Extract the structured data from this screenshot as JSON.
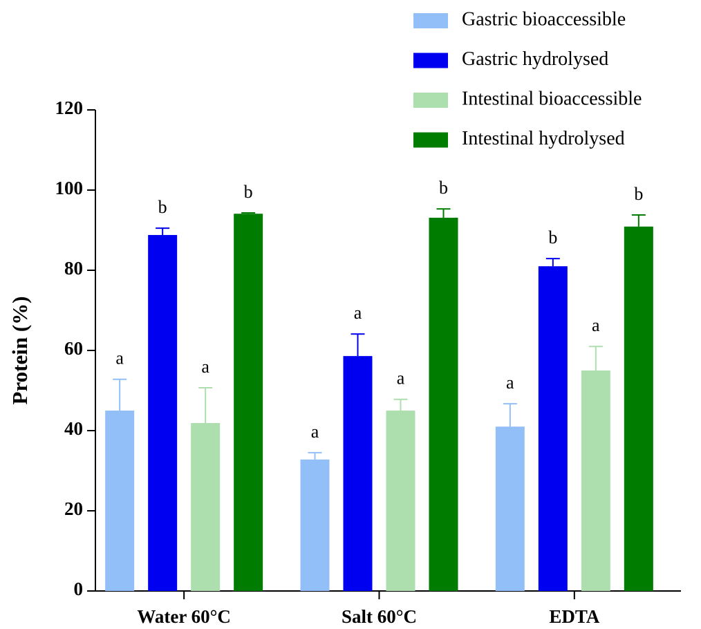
{
  "chart_data": {
    "type": "bar",
    "y_label": "Protein (%)",
    "categories": [
      "Water 60°C",
      "Salt 60°C",
      "EDTA"
    ],
    "series": [
      {
        "name": "Gastric bioaccessible",
        "color": "#92bff8",
        "values": [
          45.0,
          32.8,
          41.0
        ],
        "errors": [
          7.8,
          1.7,
          5.7
        ],
        "annotations": [
          "a",
          "a",
          "a"
        ]
      },
      {
        "name": "Gastric hydrolysed",
        "color": "#0000f0",
        "values": [
          88.8,
          58.6,
          81.0
        ],
        "errors": [
          1.7,
          5.5,
          1.9
        ],
        "annotations": [
          "b",
          "a",
          "b"
        ]
      },
      {
        "name": "Intestinal bioaccessible",
        "color": "#addfae",
        "values": [
          41.9,
          45.0,
          55.0
        ],
        "errors": [
          8.8,
          2.8,
          6.0
        ],
        "annotations": [
          "a",
          "a",
          "a"
        ]
      },
      {
        "name": "Intestinal hydrolysed",
        "color": "#007c00",
        "values": [
          94.1,
          93.1,
          90.9
        ],
        "errors": [
          0.2,
          2.2,
          2.9
        ],
        "annotations": [
          "b",
          "b",
          "b"
        ]
      }
    ],
    "ylim": [
      0,
      120
    ],
    "yticks": [
      0,
      20,
      40,
      60,
      80,
      100,
      120
    ],
    "grid": false
  }
}
